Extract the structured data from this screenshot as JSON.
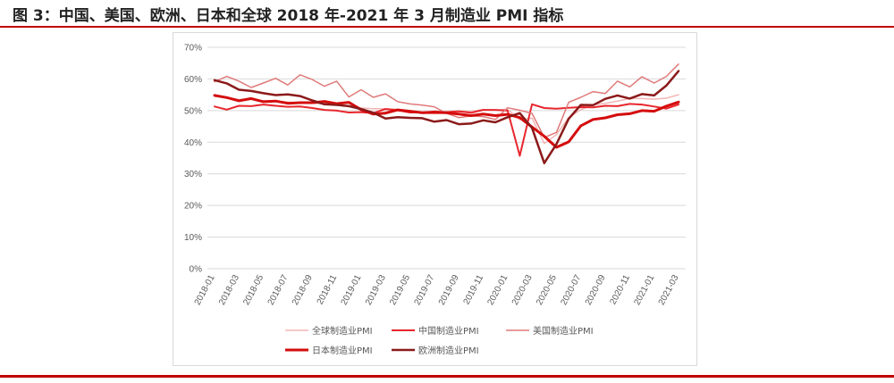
{
  "figure_title": "图 3：中国、美国、欧洲、日本和全球 2018 年-2021 年 3 月制造业 PMI 指标",
  "colors": {
    "rule": "#c00000",
    "global": "#f4b6b6",
    "china": "#e8262d",
    "usa": "#e07a7a",
    "japan": "#d40c0c",
    "euro": "#8b1a1a"
  },
  "chart_data": {
    "type": "line",
    "title": "",
    "xlabel": "",
    "ylabel": "",
    "ylim": [
      0,
      70
    ],
    "y_ticks": [
      "0%",
      "10%",
      "20%",
      "30%",
      "40%",
      "50%",
      "60%",
      "70%"
    ],
    "x_tick_labels": [
      "2018-01",
      "2018-03",
      "2018-05",
      "2018-07",
      "2018-09",
      "2018-11",
      "2019-01",
      "2019-03",
      "2019-05",
      "2019-07",
      "2019-09",
      "2019-11",
      "2020-01",
      "2020-03",
      "2020-05",
      "2020-07",
      "2020-09",
      "2020-11",
      "2021-01",
      "2021-03"
    ],
    "months": [
      "2018-01",
      "2018-02",
      "2018-03",
      "2018-04",
      "2018-05",
      "2018-06",
      "2018-07",
      "2018-08",
      "2018-09",
      "2018-10",
      "2018-11",
      "2018-12",
      "2019-01",
      "2019-02",
      "2019-03",
      "2019-04",
      "2019-05",
      "2019-06",
      "2019-07",
      "2019-08",
      "2019-09",
      "2019-10",
      "2019-11",
      "2019-12",
      "2020-01",
      "2020-02",
      "2020-03",
      "2020-04",
      "2020-05",
      "2020-06",
      "2020-07",
      "2020-08",
      "2020-09",
      "2020-10",
      "2020-11",
      "2020-12",
      "2021-01",
      "2021-02",
      "2021-03"
    ],
    "grid": "horizontal",
    "legend_position": "bottom",
    "series": [
      {
        "name": "全球制造业PMI",
        "key": "global",
        "stroke_width": 1.5,
        "values": [
          54.5,
          54.2,
          53.5,
          53.5,
          53.1,
          53.0,
          52.7,
          52.4,
          52.3,
          52.1,
          52.0,
          51.5,
          50.8,
          50.6,
          50.6,
          50.4,
          49.8,
          49.4,
          49.3,
          49.5,
          49.7,
          49.8,
          50.3,
          50.1,
          50.4,
          47.1,
          47.6,
          39.6,
          42.4,
          47.8,
          50.3,
          51.8,
          52.3,
          53.0,
          53.8,
          53.8,
          53.6,
          53.9,
          55.0
        ]
      },
      {
        "name": "中国制造业PMI",
        "key": "china",
        "stroke_width": 2,
        "values": [
          51.3,
          50.3,
          51.5,
          51.4,
          51.9,
          51.5,
          51.2,
          51.3,
          50.8,
          50.2,
          50.0,
          49.4,
          49.5,
          49.2,
          50.5,
          50.1,
          49.4,
          49.4,
          49.7,
          49.5,
          49.8,
          49.3,
          50.2,
          50.2,
          50.0,
          35.7,
          52.0,
          50.8,
          50.6,
          50.9,
          51.1,
          51.0,
          51.5,
          51.4,
          52.1,
          51.9,
          51.3,
          50.6,
          51.9
        ]
      },
      {
        "name": "美国制造业PMI",
        "key": "usa",
        "stroke_width": 1.5,
        "values": [
          59.1,
          60.8,
          59.3,
          57.3,
          58.7,
          60.2,
          58.1,
          61.3,
          59.8,
          57.7,
          59.3,
          54.3,
          56.6,
          54.2,
          55.3,
          52.8,
          52.1,
          51.7,
          51.2,
          49.1,
          47.8,
          48.3,
          48.1,
          47.2,
          50.9,
          50.1,
          49.1,
          41.5,
          43.1,
          52.6,
          54.2,
          56.0,
          55.4,
          59.3,
          57.5,
          60.7,
          58.7,
          60.8,
          64.7
        ]
      },
      {
        "name": "日本制造业PMI",
        "key": "japan",
        "stroke_width": 3,
        "values": [
          54.8,
          54.1,
          53.1,
          53.8,
          52.8,
          53.0,
          52.3,
          52.5,
          52.5,
          52.9,
          52.2,
          52.6,
          50.3,
          48.9,
          49.2,
          50.2,
          49.8,
          49.3,
          49.4,
          49.3,
          48.9,
          48.4,
          48.9,
          48.4,
          48.8,
          47.8,
          44.8,
          41.9,
          38.4,
          40.1,
          45.2,
          47.2,
          47.7,
          48.7,
          49.0,
          50.0,
          49.8,
          51.4,
          52.7
        ]
      },
      {
        "name": "欧洲制造业PMI",
        "key": "euro",
        "stroke_width": 2.5,
        "values": [
          59.6,
          58.6,
          56.6,
          56.2,
          55.5,
          54.9,
          55.1,
          54.6,
          53.2,
          52.0,
          51.8,
          51.4,
          50.5,
          49.3,
          47.5,
          47.9,
          47.7,
          47.6,
          46.5,
          47.0,
          45.7,
          45.9,
          46.9,
          46.3,
          47.9,
          49.2,
          44.5,
          33.4,
          39.4,
          47.4,
          51.8,
          51.7,
          53.7,
          54.8,
          53.8,
          55.2,
          54.8,
          57.9,
          62.5
        ]
      }
    ]
  }
}
